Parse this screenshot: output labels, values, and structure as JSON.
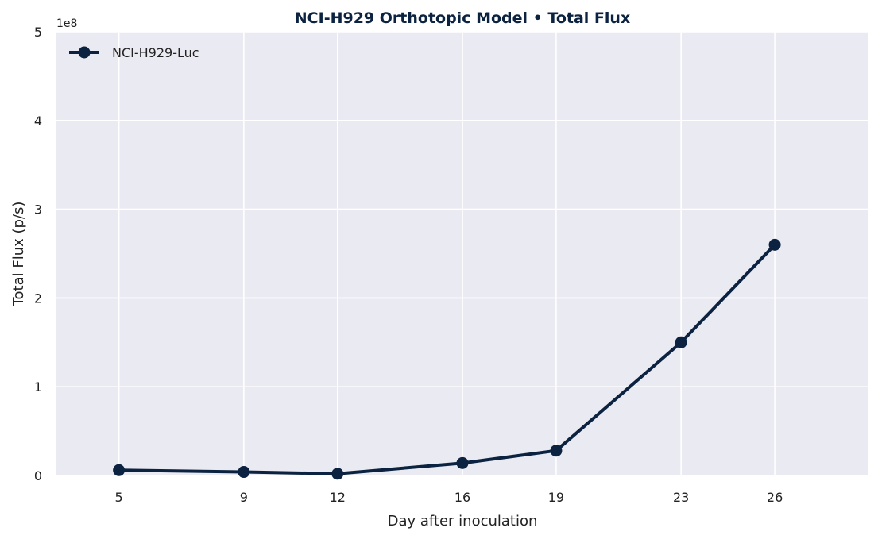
{
  "chart_data": {
    "type": "line",
    "title": "NCI-H929 Orthotopic Model  •  Total Flux",
    "xlabel": "Day after inoculation",
    "ylabel": "Total Flux (p/s)",
    "y_offset_label": "1e8",
    "x": [
      5,
      9,
      12,
      16,
      19,
      23,
      26
    ],
    "x_ticks": [
      5,
      9,
      12,
      16,
      19,
      23,
      26
    ],
    "x_tick_labels": [
      "5",
      "9",
      "12",
      "16",
      "19",
      "23",
      "26"
    ],
    "xlim": [
      3,
      29
    ],
    "ylim": [
      0,
      500000000
    ],
    "y_ticks": [
      0,
      100000000,
      200000000,
      300000000,
      400000000,
      500000000
    ],
    "y_tick_labels": [
      "0",
      "1",
      "2",
      "3",
      "4",
      "5"
    ],
    "series": [
      {
        "name": "NCI-H929-Luc",
        "values": [
          6000000,
          4000000,
          2000000,
          14000000,
          28000000,
          150000000,
          260000000
        ],
        "color": "#0b2340"
      }
    ],
    "grid": true,
    "legend_position": "top-left",
    "background_color": "#eaeaf2"
  }
}
